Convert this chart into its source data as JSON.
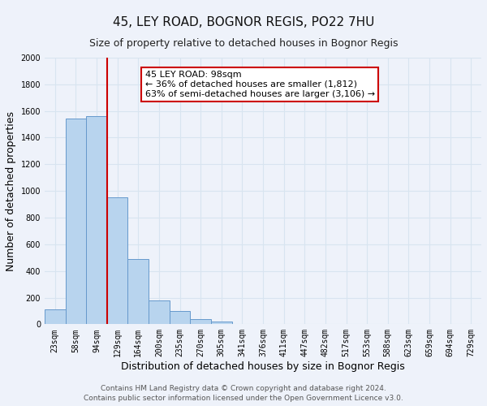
{
  "title": "45, LEY ROAD, BOGNOR REGIS, PO22 7HU",
  "subtitle": "Size of property relative to detached houses in Bognor Regis",
  "xlabel": "Distribution of detached houses by size in Bognor Regis",
  "ylabel": "Number of detached properties",
  "bar_labels": [
    "23sqm",
    "58sqm",
    "94sqm",
    "129sqm",
    "164sqm",
    "200sqm",
    "235sqm",
    "270sqm",
    "305sqm",
    "341sqm",
    "376sqm",
    "411sqm",
    "447sqm",
    "482sqm",
    "517sqm",
    "553sqm",
    "588sqm",
    "623sqm",
    "659sqm",
    "694sqm",
    "729sqm"
  ],
  "bar_values": [
    110,
    1540,
    1560,
    950,
    490,
    180,
    100,
    38,
    20,
    0,
    0,
    0,
    0,
    0,
    0,
    0,
    0,
    0,
    0,
    0,
    0
  ],
  "bar_color": "#b8d4ee",
  "bar_edge_color": "#6699cc",
  "highlight_bar_index": 2,
  "highlight_line_color": "#cc0000",
  "ylim": [
    0,
    2000
  ],
  "yticks": [
    0,
    200,
    400,
    600,
    800,
    1000,
    1200,
    1400,
    1600,
    1800,
    2000
  ],
  "annotation_line1": "45 LEY ROAD: 98sqm",
  "annotation_line2": "← 36% of detached houses are smaller (1,812)",
  "annotation_line3": "63% of semi-detached houses are larger (3,106) →",
  "annotation_box_color": "#ffffff",
  "annotation_box_edge": "#cc0000",
  "footer_line1": "Contains HM Land Registry data © Crown copyright and database right 2024.",
  "footer_line2": "Contains public sector information licensed under the Open Government Licence v3.0.",
  "background_color": "#eef2fa",
  "grid_color": "#d8e4f0",
  "title_fontsize": 11,
  "subtitle_fontsize": 9,
  "axis_label_fontsize": 9,
  "tick_fontsize": 7,
  "footer_fontsize": 6.5
}
